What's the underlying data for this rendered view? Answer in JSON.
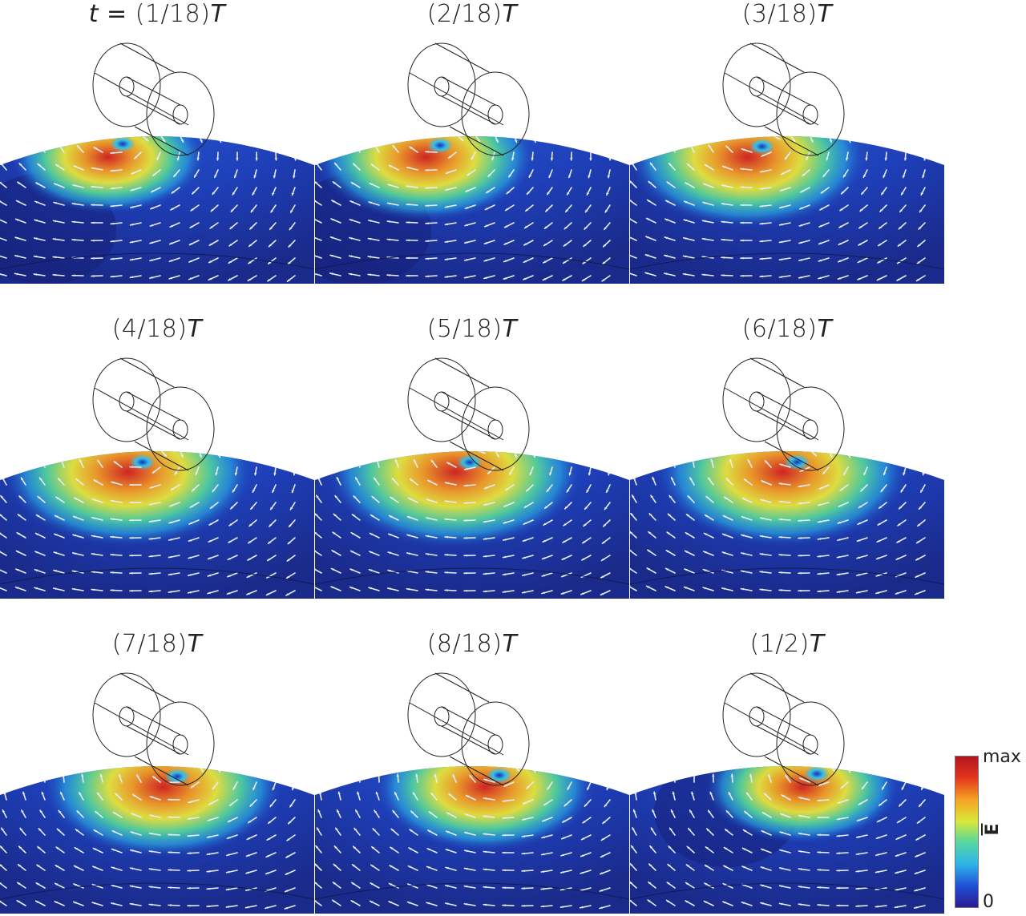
{
  "panels": [
    {
      "prefix": "t = ",
      "fraction": "(1/18)",
      "var": "T",
      "phase": 1
    },
    {
      "prefix": "",
      "fraction": "(2/18)",
      "var": "T",
      "phase": 2
    },
    {
      "prefix": "",
      "fraction": "(3/18)",
      "var": "T",
      "phase": 3
    },
    {
      "prefix": "",
      "fraction": "(4/18)",
      "var": "T",
      "phase": 4
    },
    {
      "prefix": "",
      "fraction": "(5/18)",
      "var": "T",
      "phase": 5
    },
    {
      "prefix": "",
      "fraction": "(6/18)",
      "var": "T",
      "phase": 6
    },
    {
      "prefix": "",
      "fraction": "(7/18)",
      "var": "T",
      "phase": 7
    },
    {
      "prefix": "",
      "fraction": "(8/18)",
      "var": "T",
      "phase": 8
    },
    {
      "prefix": "",
      "fraction": "(1/2)",
      "var": "T",
      "phase": 9
    }
  ],
  "colorbar": {
    "max_label": "max",
    "min_label": "0",
    "quantity": "E",
    "colors": [
      "#2b1a8f",
      "#1f4fd6",
      "#2fb6e8",
      "#57d6a0",
      "#d8e83a",
      "#f6a524",
      "#e3341c",
      "#b3151f"
    ]
  },
  "icons": {
    "probe": "coaxial-probe-wireframe",
    "arrows": "field-vector-arrows"
  }
}
